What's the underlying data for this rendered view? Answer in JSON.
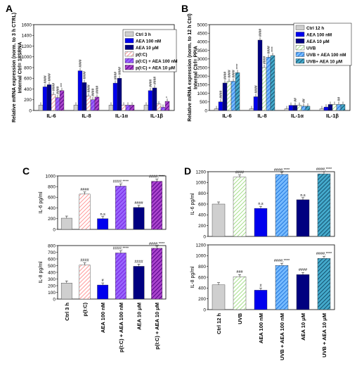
{
  "colors": {
    "ctrl": "#cfcfcf",
    "pic": "#ff9999",
    "aea100": "#0000ee",
    "aea10": "#000080",
    "pic_aea100": "#7722dd",
    "pic_aea10": "#550088",
    "uvb": "#a6e08a",
    "uvb_aea100": "#2277dd",
    "uvb_aea10": "#14506e"
  },
  "chart_data": [
    {
      "panel": "A",
      "type": "bar",
      "ylabel": "Relative mRNA expression (norm. to 3 h CTRL) Internal Ctrl= 18SRNA",
      "ylim": [
        0,
        1600
      ],
      "yticks": [
        "0",
        "200",
        "400",
        "600",
        "800",
        "1000",
        "1200",
        "1400",
        "1600"
      ],
      "categories": [
        "IL-6",
        "IL-8",
        "IL-1α",
        "IL-1β"
      ],
      "legend": [
        "Ctrl 3 h",
        "AEA 100 nM",
        "AEA 10 μM",
        "p(I:C)",
        "p(I:C) + AEA 100 nM",
        "p(I:C) + AEA 10 μM"
      ],
      "series": [
        {
          "name": "Ctrl 3 h",
          "values": [
            100,
            100,
            100,
            100
          ],
          "sig": [
            "",
            "",
            "",
            ""
          ]
        },
        {
          "name": "AEA 100 nM",
          "values": [
            440,
            740,
            510,
            370
          ],
          "sig": [
            "####",
            "####",
            "####",
            "####"
          ]
        },
        {
          "name": "AEA 10 μM",
          "values": [
            480,
            520,
            600,
            420
          ],
          "sig": [
            "####",
            "####",
            "####",
            "####"
          ]
        },
        {
          "name": "p(I:C)",
          "values": [
            300,
            270,
            100,
            120
          ],
          "sig": [
            "####",
            "####",
            "",
            ""
          ]
        },
        {
          "name": "p(I:C) + AEA 100 nM",
          "values": [
            240,
            200,
            100,
            60
          ],
          "sig": [
            "####",
            "####",
            "",
            ""
          ]
        },
        {
          "name": "p(I:C) + AEA 10 μM",
          "values": [
            370,
            250,
            100,
            170
          ],
          "sig": [
            "***",
            "####",
            "",
            "*"
          ]
        }
      ]
    },
    {
      "panel": "B",
      "type": "bar",
      "ylabel": "Relative mRNA expression (norm. to 12 h Ctrl) Internal Ctrl= PPIA",
      "ylim": [
        0,
        5000
      ],
      "yticks": [
        "0",
        "500",
        "1000",
        "1500",
        "2000",
        "2500",
        "3000",
        "3500",
        "4000",
        "4500",
        "5000"
      ],
      "categories": [
        "IL-6",
        "IL-8",
        "IL-1α",
        "IL-1β"
      ],
      "legend": [
        "Ctrl 12 h",
        "AEA 100 nM",
        "AEA 10 μM",
        "UVB",
        "UVB + AEA 100 nM",
        "UVB+ AEA 10 μM"
      ],
      "series": [
        {
          "name": "Ctrl 12 h",
          "values": [
            100,
            100,
            100,
            100
          ],
          "sig": [
            "",
            "",
            "",
            ""
          ]
        },
        {
          "name": "AEA 100 nM",
          "values": [
            500,
            800,
            300,
            200
          ],
          "sig": [
            "####",
            "####",
            "",
            ""
          ]
        },
        {
          "name": "AEA 10 μM",
          "values": [
            1600,
            4100,
            300,
            350
          ],
          "sig": [
            "####",
            "####",
            "##",
            ""
          ]
        },
        {
          "name": "UVB",
          "values": [
            1700,
            2500,
            300,
            350
          ],
          "sig": [
            "####",
            "####",
            "",
            ""
          ]
        },
        {
          "name": "UVB + AEA 100 nM",
          "values": [
            1700,
            3100,
            250,
            350
          ],
          "sig": [
            "####",
            "####",
            "##",
            "##"
          ]
        },
        {
          "name": "UVB+ AEA 10 μM",
          "values": [
            2200,
            3200,
            250,
            350
          ],
          "sig": [
            "****",
            "****",
            "",
            ""
          ]
        }
      ]
    },
    {
      "panel": "C",
      "type": "bar",
      "categories": [
        "Ctrl 3 h",
        "p(I:C)",
        "AEA 100 nM",
        "p(I:C) + AEA 100 nM",
        "AEA 10 μM",
        "p(I:C) + AEA 10 μM"
      ],
      "subplots": [
        {
          "ylabel": "IL-6 pg/ml",
          "ylim": [
            0,
            1000
          ],
          "yticks": [
            "0",
            "200",
            "400",
            "600",
            "800",
            "1000"
          ],
          "values": [
            210,
            660,
            200,
            810,
            410,
            900
          ],
          "labels": [
            "",
            "####",
            "n.s",
            "####,****",
            "####",
            "####,****"
          ]
        },
        {
          "ylabel": "IL-8 pg/ml",
          "ylim": [
            0,
            800
          ],
          "yticks": [
            "0",
            "100",
            "200",
            "300",
            "400",
            "500",
            "600",
            "700",
            "800"
          ],
          "values": [
            240,
            510,
            210,
            690,
            490,
            760
          ],
          "labels": [
            "",
            "####",
            "#",
            "####,****",
            "####",
            "####,****"
          ]
        }
      ]
    },
    {
      "panel": "D",
      "type": "bar",
      "categories": [
        "Ctrl 12 h",
        "UVB",
        "AEA 100 nM",
        "UVB + AEA 100 nM",
        "AEA 10 μM",
        "UVB + AEA 10 μM"
      ],
      "subplots": [
        {
          "ylabel": "IL-6 pg/ml",
          "ylim": [
            0,
            1200
          ],
          "yticks": [
            "0",
            "200",
            "400",
            "600",
            "800",
            "1000",
            "1200"
          ],
          "values": [
            600,
            1100,
            520,
            1150,
            680,
            1160
          ],
          "labels": [
            "",
            "####",
            "n.s",
            "####,****",
            "n.s",
            "####,****"
          ]
        },
        {
          "ylabel": "IL-8 pg/ml",
          "ylim": [
            0,
            1200
          ],
          "yticks": [
            "0",
            "200",
            "400",
            "600",
            "800",
            "1000",
            "1200"
          ],
          "values": [
            460,
            610,
            360,
            820,
            650,
            950
          ],
          "labels": [
            "",
            "###",
            "#",
            "####,****",
            "####",
            "####,****"
          ]
        }
      ]
    }
  ],
  "panel_letters": [
    "A",
    "B",
    "C",
    "D"
  ]
}
